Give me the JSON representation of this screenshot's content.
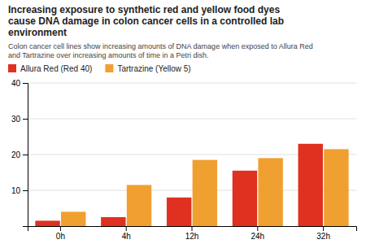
{
  "chart_data": {
    "type": "bar",
    "title": "Increasing exposure to synthetic red and yellow food dyes\ncause DNA damage in colon cancer cells in a controlled lab\nenvironment",
    "subtitle": "Colon cancer cell lines show increasing amounts of DNA damage when exposed to Allura Red\nand Tartrazine over increasing amounts of time in a Petri dish.",
    "categories": [
      "0h",
      "4h",
      "12h",
      "24h",
      "32h"
    ],
    "series": [
      {
        "name": "Allura Red (Red 40)",
        "color": "#e03020",
        "values": [
          1.5,
          2.5,
          8.0,
          15.5,
          23.0
        ]
      },
      {
        "name": "Tartrazine (Yellow 5)",
        "color": "#f0a030",
        "values": [
          4.0,
          11.5,
          18.5,
          19.0,
          21.5
        ]
      }
    ],
    "ylim": [
      0,
      40
    ],
    "yticks": [
      10,
      20,
      30,
      40
    ],
    "grid": true,
    "legend": "top"
  }
}
